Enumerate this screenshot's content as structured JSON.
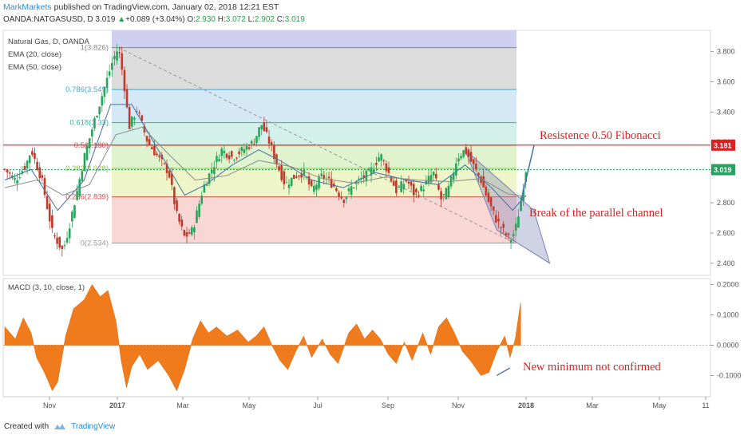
{
  "header": {
    "brand": "MarkMarkets",
    "published": "published on TradingView.com, January 02, 2018 12:21 EST",
    "symbol": "OANDA:NATGASUSD, D",
    "last": "3.019",
    "change": "+0.089 (+3.04%)",
    "open_label": "O:",
    "open": "2.930",
    "high_label": "H:",
    "high": "3.072",
    "low_label": "L:",
    "low": "2.902",
    "close_label": "C:",
    "close": "3.019"
  },
  "legend": {
    "title": "Natural Gas, D, OANDA",
    "ema20": "EMA (20, close)",
    "ema50": "EMA (50, close)",
    "macd": "MACD (3, 10, close, 1)"
  },
  "annotations": {
    "resistance": "Resistence 0.50 Fibonacci",
    "break": "Break of the parallel channel",
    "minimum": "New minimum not confirmed"
  },
  "footer": {
    "created": "Created with",
    "brand": "TradingView"
  },
  "chart_data": {
    "type": "candlestick",
    "price_axis": {
      "ylim": [
        2.32,
        3.94
      ],
      "ticks": [
        "3.800",
        "3.600",
        "3.400",
        "3.200",
        "3.000",
        "2.800",
        "2.600",
        "2.400"
      ]
    },
    "macd_axis": {
      "ylim": [
        -0.17,
        0.22
      ],
      "ticks": [
        "0.2000",
        "0.1000",
        "0.0000",
        "-0.1000"
      ]
    },
    "x_ticks": [
      "Nov",
      "2017",
      "Mar",
      "May",
      "Jul",
      "Sep",
      "Nov",
      "2018",
      "Mar",
      "May",
      "11"
    ],
    "fibonacci": [
      {
        "label": "1(3.826)",
        "value": 3.826
      },
      {
        "label": "0.786(3.549)",
        "value": 3.549
      },
      {
        "label": "0.618(3.33)",
        "value": 3.33
      },
      {
        "label": "0.5(3.180)",
        "value": 3.18
      },
      {
        "label": "0.382(3.028)",
        "value": 3.028
      },
      {
        "label": "0.236(2.839)",
        "value": 2.839
      },
      {
        "label": "0(2.534)",
        "value": 2.534
      }
    ],
    "resistance": {
      "label": "3.181",
      "value": 3.181
    },
    "last_price": {
      "label": "3.019",
      "value": 3.019
    },
    "price_path": [
      [
        0,
        3.02
      ],
      [
        0.02,
        2.95
      ],
      [
        0.04,
        3.05
      ],
      [
        0.05,
        3.15
      ],
      [
        0.07,
        2.95
      ],
      [
        0.09,
        2.6
      ],
      [
        0.11,
        2.48
      ],
      [
        0.12,
        2.62
      ],
      [
        0.135,
        2.85
      ],
      [
        0.15,
        3.1
      ],
      [
        0.17,
        3.35
      ],
      [
        0.19,
        3.58
      ],
      [
        0.205,
        3.75
      ],
      [
        0.215,
        3.826
      ],
      [
        0.225,
        3.6
      ],
      [
        0.235,
        3.3
      ],
      [
        0.25,
        3.42
      ],
      [
        0.27,
        3.2
      ],
      [
        0.29,
        3.1
      ],
      [
        0.31,
        3.0
      ],
      [
        0.325,
        2.72
      ],
      [
        0.34,
        2.57
      ],
      [
        0.355,
        2.62
      ],
      [
        0.375,
        2.9
      ],
      [
        0.395,
        3.05
      ],
      [
        0.41,
        3.15
      ],
      [
        0.43,
        3.1
      ],
      [
        0.45,
        3.15
      ],
      [
        0.47,
        3.2
      ],
      [
        0.485,
        3.32
      ],
      [
        0.5,
        3.2
      ],
      [
        0.515,
        3.05
      ],
      [
        0.53,
        2.92
      ],
      [
        0.55,
        2.98
      ],
      [
        0.565,
        3.0
      ],
      [
        0.58,
        2.88
      ],
      [
        0.6,
        2.98
      ],
      [
        0.62,
        2.92
      ],
      [
        0.64,
        2.82
      ],
      [
        0.655,
        2.9
      ],
      [
        0.67,
        2.95
      ],
      [
        0.69,
        3.0
      ],
      [
        0.71,
        3.12
      ],
      [
        0.725,
        3.0
      ],
      [
        0.74,
        2.88
      ],
      [
        0.76,
        2.95
      ],
      [
        0.775,
        2.85
      ],
      [
        0.79,
        2.9
      ],
      [
        0.81,
        3.0
      ],
      [
        0.825,
        2.82
      ],
      [
        0.84,
        2.9
      ],
      [
        0.855,
        3.1
      ],
      [
        0.87,
        3.15
      ],
      [
        0.885,
        3.05
      ],
      [
        0.9,
        2.95
      ],
      [
        0.915,
        2.8
      ],
      [
        0.93,
        2.68
      ],
      [
        0.945,
        2.6
      ],
      [
        0.955,
        2.55
      ],
      [
        0.965,
        2.62
      ],
      [
        0.975,
        2.8
      ],
      [
        0.985,
        3.019
      ]
    ],
    "ema20_path": [
      [
        0,
        2.95
      ],
      [
        0.05,
        3.02
      ],
      [
        0.1,
        2.75
      ],
      [
        0.15,
        2.95
      ],
      [
        0.2,
        3.45
      ],
      [
        0.24,
        3.45
      ],
      [
        0.29,
        3.15
      ],
      [
        0.34,
        2.85
      ],
      [
        0.38,
        2.92
      ],
      [
        0.43,
        3.05
      ],
      [
        0.48,
        3.15
      ],
      [
        0.52,
        3.08
      ],
      [
        0.58,
        2.95
      ],
      [
        0.64,
        2.9
      ],
      [
        0.7,
        3.0
      ],
      [
        0.76,
        2.95
      ],
      [
        0.82,
        2.92
      ],
      [
        0.87,
        3.05
      ],
      [
        0.92,
        2.9
      ],
      [
        0.96,
        2.75
      ],
      [
        0.985,
        2.85
      ]
    ],
    "ema50_path": [
      [
        0,
        2.9
      ],
      [
        0.06,
        2.95
      ],
      [
        0.11,
        2.85
      ],
      [
        0.16,
        2.92
      ],
      [
        0.21,
        3.25
      ],
      [
        0.26,
        3.3
      ],
      [
        0.31,
        3.12
      ],
      [
        0.36,
        2.95
      ],
      [
        0.42,
        2.98
      ],
      [
        0.48,
        3.08
      ],
      [
        0.54,
        3.04
      ],
      [
        0.6,
        2.96
      ],
      [
        0.66,
        2.93
      ],
      [
        0.72,
        2.97
      ],
      [
        0.78,
        2.95
      ],
      [
        0.84,
        2.94
      ],
      [
        0.9,
        2.96
      ],
      [
        0.95,
        2.86
      ],
      [
        0.985,
        2.84
      ]
    ],
    "macd_path": [
      [
        0,
        0.06
      ],
      [
        0.02,
        0.02
      ],
      [
        0.035,
        0.09
      ],
      [
        0.05,
        0.04
      ],
      [
        0.06,
        -0.04
      ],
      [
        0.075,
        -0.09
      ],
      [
        0.09,
        -0.15
      ],
      [
        0.1,
        -0.12
      ],
      [
        0.115,
        0.03
      ],
      [
        0.13,
        0.12
      ],
      [
        0.15,
        0.15
      ],
      [
        0.165,
        0.2
      ],
      [
        0.18,
        0.16
      ],
      [
        0.195,
        0.18
      ],
      [
        0.21,
        0.08
      ],
      [
        0.22,
        -0.05
      ],
      [
        0.23,
        -0.14
      ],
      [
        0.24,
        -0.07
      ],
      [
        0.255,
        -0.03
      ],
      [
        0.27,
        -0.08
      ],
      [
        0.29,
        -0.05
      ],
      [
        0.31,
        -0.1
      ],
      [
        0.325,
        -0.15
      ],
      [
        0.34,
        -0.08
      ],
      [
        0.355,
        0.02
      ],
      [
        0.37,
        0.08
      ],
      [
        0.385,
        0.04
      ],
      [
        0.4,
        0.06
      ],
      [
        0.42,
        0.03
      ],
      [
        0.44,
        0.05
      ],
      [
        0.46,
        0.01
      ],
      [
        0.475,
        0.03
      ],
      [
        0.49,
        0.06
      ],
      [
        0.505,
        0.0
      ],
      [
        0.52,
        -0.05
      ],
      [
        0.535,
        -0.08
      ],
      [
        0.55,
        -0.02
      ],
      [
        0.565,
        0.03
      ],
      [
        0.58,
        -0.04
      ],
      [
        0.6,
        0.02
      ],
      [
        0.615,
        -0.03
      ],
      [
        0.63,
        -0.06
      ],
      [
        0.65,
        0.04
      ],
      [
        0.665,
        0.07
      ],
      [
        0.68,
        0.02
      ],
      [
        0.695,
        0.05
      ],
      [
        0.71,
        0.02
      ],
      [
        0.725,
        -0.03
      ],
      [
        0.74,
        -0.06
      ],
      [
        0.755,
        0.01
      ],
      [
        0.77,
        -0.05
      ],
      [
        0.79,
        0.04
      ],
      [
        0.805,
        -0.03
      ],
      [
        0.82,
        0.06
      ],
      [
        0.835,
        0.09
      ],
      [
        0.85,
        0.04
      ],
      [
        0.865,
        -0.02
      ],
      [
        0.88,
        -0.05
      ],
      [
        0.9,
        -0.1
      ],
      [
        0.915,
        -0.09
      ],
      [
        0.93,
        -0.02
      ],
      [
        0.945,
        0.03
      ],
      [
        0.955,
        -0.04
      ],
      [
        0.965,
        0.02
      ],
      [
        0.975,
        0.14
      ]
    ]
  }
}
